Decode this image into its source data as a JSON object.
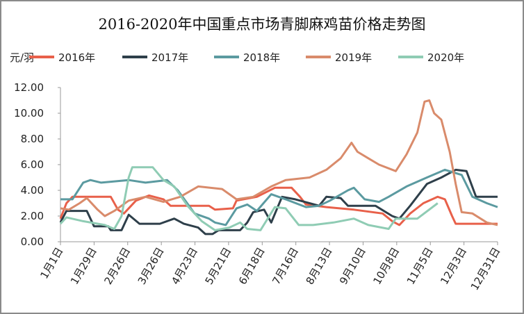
{
  "chart_data": {
    "type": "line",
    "title": "2016-2020年中国重点市场青脚麻鸡苗价格走势图",
    "ylabel": "元/羽",
    "xlabel": "",
    "ylim": [
      0,
      12
    ],
    "yticks": [
      "0.00",
      "2.00",
      "4.00",
      "6.00",
      "8.00",
      "10.00",
      "12.00"
    ],
    "ytick_values": [
      0,
      2,
      4,
      6,
      8,
      10,
      12
    ],
    "xlim_days": [
      0,
      365
    ],
    "xticks": [
      "1月1日",
      "1月29日",
      "2月26日",
      "3月26日",
      "4月23日",
      "5月21日",
      "6月18日",
      "7月16日",
      "8月13日",
      "9月10日",
      "10月8日",
      "11月5日",
      "12月3日",
      "12月31日"
    ],
    "grid": false,
    "legend_position": "top",
    "series": [
      {
        "name": "2016年",
        "color": "#E8604A",
        "points": [
          [
            0,
            1.8
          ],
          [
            5,
            3.0
          ],
          [
            10,
            3.5
          ],
          [
            42,
            3.5
          ],
          [
            48,
            2.5
          ],
          [
            53,
            2.2
          ],
          [
            63,
            3.2
          ],
          [
            74,
            3.6
          ],
          [
            86,
            3.3
          ],
          [
            92,
            2.8
          ],
          [
            124,
            2.8
          ],
          [
            129,
            2.5
          ],
          [
            144,
            2.6
          ],
          [
            147,
            3.2
          ],
          [
            164,
            3.5
          ],
          [
            179,
            4.2
          ],
          [
            193,
            4.2
          ],
          [
            200,
            3.5
          ],
          [
            205,
            2.9
          ],
          [
            222,
            2.7
          ],
          [
            245,
            2.5
          ],
          [
            269,
            2.2
          ],
          [
            277,
            1.6
          ],
          [
            283,
            1.3
          ],
          [
            292,
            2.2
          ],
          [
            303,
            3.0
          ],
          [
            315,
            3.5
          ],
          [
            321,
            3.3
          ],
          [
            327,
            2.0
          ],
          [
            330,
            1.4
          ],
          [
            365,
            1.4
          ]
        ]
      },
      {
        "name": "2017年",
        "color": "#2E3F4A",
        "points": [
          [
            0,
            1.5
          ],
          [
            5,
            2.4
          ],
          [
            22,
            2.4
          ],
          [
            28,
            1.2
          ],
          [
            40,
            1.2
          ],
          [
            42,
            0.9
          ],
          [
            51,
            0.9
          ],
          [
            57,
            2.1
          ],
          [
            66,
            1.4
          ],
          [
            83,
            1.4
          ],
          [
            95,
            1.8
          ],
          [
            103,
            1.4
          ],
          [
            115,
            1.1
          ],
          [
            121,
            0.6
          ],
          [
            127,
            0.6
          ],
          [
            132,
            0.9
          ],
          [
            150,
            0.9
          ],
          [
            156,
            1.5
          ],
          [
            161,
            2.3
          ],
          [
            170,
            2.5
          ],
          [
            176,
            1.5
          ],
          [
            185,
            3.5
          ],
          [
            196,
            3.3
          ],
          [
            216,
            2.8
          ],
          [
            222,
            3.5
          ],
          [
            234,
            3.4
          ],
          [
            240,
            2.8
          ],
          [
            263,
            2.8
          ],
          [
            277,
            2.0
          ],
          [
            283,
            1.8
          ],
          [
            292,
            2.8
          ],
          [
            306,
            4.5
          ],
          [
            318,
            5.0
          ],
          [
            330,
            5.6
          ],
          [
            339,
            5.5
          ],
          [
            347,
            3.5
          ],
          [
            365,
            3.5
          ]
        ]
      },
      {
        "name": "2018年",
        "color": "#5B9AA0",
        "points": [
          [
            0,
            3.3
          ],
          [
            10,
            3.3
          ],
          [
            19,
            4.6
          ],
          [
            25,
            4.8
          ],
          [
            34,
            4.6
          ],
          [
            57,
            4.8
          ],
          [
            71,
            4.6
          ],
          [
            89,
            4.8
          ],
          [
            98,
            4.0
          ],
          [
            112,
            2.2
          ],
          [
            124,
            1.8
          ],
          [
            129,
            1.5
          ],
          [
            138,
            1.3
          ],
          [
            147,
            2.6
          ],
          [
            156,
            2.9
          ],
          [
            164,
            2.4
          ],
          [
            176,
            3.7
          ],
          [
            188,
            3.3
          ],
          [
            205,
            2.7
          ],
          [
            216,
            2.8
          ],
          [
            225,
            3.2
          ],
          [
            240,
            4.0
          ],
          [
            245,
            4.2
          ],
          [
            254,
            3.3
          ],
          [
            266,
            3.1
          ],
          [
            274,
            3.5
          ],
          [
            289,
            4.3
          ],
          [
            306,
            5.0
          ],
          [
            321,
            5.6
          ],
          [
            335,
            5.2
          ],
          [
            344,
            3.5
          ],
          [
            356,
            3.0
          ],
          [
            365,
            2.7
          ]
        ]
      },
      {
        "name": "2019年",
        "color": "#D98B6B",
        "points": [
          [
            0,
            2.6
          ],
          [
            7,
            2.5
          ],
          [
            16,
            3.0
          ],
          [
            22,
            3.4
          ],
          [
            31,
            2.5
          ],
          [
            37,
            2.0
          ],
          [
            45,
            2.4
          ],
          [
            57,
            3.2
          ],
          [
            71,
            3.5
          ],
          [
            86,
            3.1
          ],
          [
            100,
            3.5
          ],
          [
            115,
            4.3
          ],
          [
            135,
            4.1
          ],
          [
            147,
            3.3
          ],
          [
            161,
            3.5
          ],
          [
            176,
            4.3
          ],
          [
            188,
            4.8
          ],
          [
            208,
            5.0
          ],
          [
            222,
            5.6
          ],
          [
            234,
            6.5
          ],
          [
            243,
            7.7
          ],
          [
            248,
            7.0
          ],
          [
            257,
            6.5
          ],
          [
            266,
            6.0
          ],
          [
            280,
            5.5
          ],
          [
            289,
            6.8
          ],
          [
            298,
            8.5
          ],
          [
            304,
            10.9
          ],
          [
            308,
            11.0
          ],
          [
            312,
            10.0
          ],
          [
            318,
            9.5
          ],
          [
            325,
            7.0
          ],
          [
            330,
            4.5
          ],
          [
            335,
            2.3
          ],
          [
            344,
            2.2
          ],
          [
            356,
            1.5
          ],
          [
            365,
            1.3
          ]
        ]
      },
      {
        "name": "2020年",
        "color": "#8FCCB4",
        "points": [
          [
            0,
            1.4
          ],
          [
            5,
            1.9
          ],
          [
            19,
            1.6
          ],
          [
            37,
            1.3
          ],
          [
            45,
            1.0
          ],
          [
            51,
            2.0
          ],
          [
            57,
            5.0
          ],
          [
            60,
            5.8
          ],
          [
            77,
            5.8
          ],
          [
            86,
            4.8
          ],
          [
            95,
            4.3
          ],
          [
            106,
            2.8
          ],
          [
            118,
            1.6
          ],
          [
            129,
            0.9
          ],
          [
            141,
            1.1
          ],
          [
            150,
            1.5
          ],
          [
            156,
            1.0
          ],
          [
            167,
            0.9
          ],
          [
            179,
            2.7
          ],
          [
            188,
            2.6
          ],
          [
            199,
            1.3
          ],
          [
            211,
            1.3
          ],
          [
            228,
            1.5
          ],
          [
            245,
            1.8
          ],
          [
            257,
            1.3
          ],
          [
            274,
            1.0
          ],
          [
            280,
            1.8
          ],
          [
            298,
            1.8
          ],
          [
            315,
            3.0
          ]
        ]
      }
    ]
  }
}
